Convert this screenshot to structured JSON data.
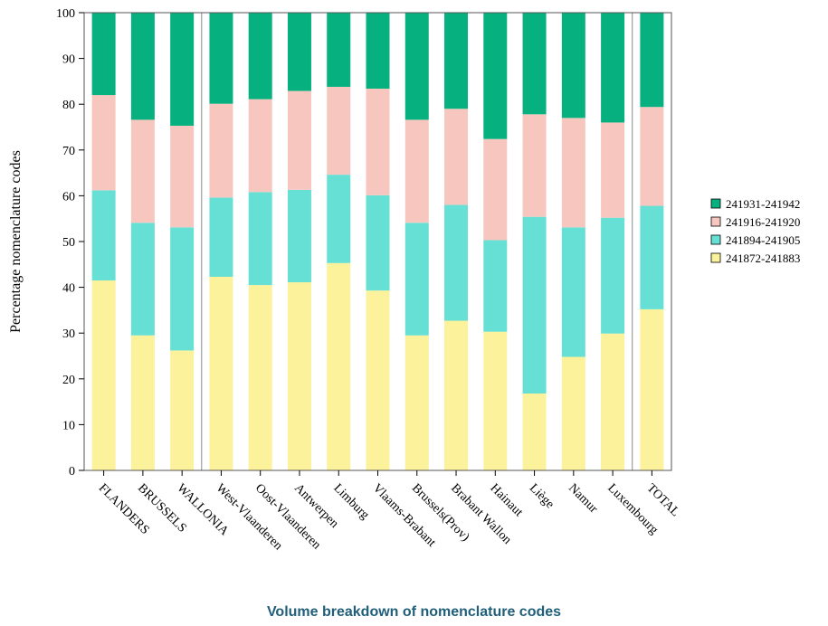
{
  "chart_data": {
    "type": "bar",
    "stacked": true,
    "ylabel": "Percentage nomenclature codes",
    "ylim": [
      0,
      100
    ],
    "yticks": [
      0,
      10,
      20,
      30,
      40,
      50,
      60,
      70,
      80,
      90,
      100
    ],
    "categories": [
      "FLANDERS",
      "BRUSSELS",
      "WALLONIA",
      "West-Vlaanderen",
      "Oost-Vlaanderen",
      "Antwerpen",
      "Limburg",
      "Vlaams-Brabant",
      "Brussels(Prov)",
      "Brabant Wallon",
      "Hainaut",
      "Liège",
      "Namur",
      "Luxembourg",
      "TOTAL"
    ],
    "group_separators_after": [
      2,
      13
    ],
    "series": [
      {
        "name": "241872-241883",
        "color": "#fbf29b",
        "values": [
          41.5,
          29.5,
          26.2,
          42.3,
          40.5,
          41.1,
          45.3,
          39.3,
          29.5,
          32.7,
          30.3,
          16.8,
          24.8,
          29.9,
          35.2
        ]
      },
      {
        "name": "241894-241905",
        "color": "#66e0d4",
        "values": [
          19.7,
          24.6,
          26.9,
          17.3,
          20.3,
          20.2,
          19.3,
          20.8,
          24.6,
          25.3,
          20.0,
          38.6,
          28.3,
          25.3,
          22.6
        ]
      },
      {
        "name": "241916-241920",
        "color": "#f7c6be",
        "values": [
          20.8,
          22.5,
          22.2,
          20.5,
          20.3,
          21.6,
          19.2,
          23.3,
          22.5,
          21.0,
          22.1,
          22.4,
          23.9,
          20.8,
          21.6
        ]
      },
      {
        "name": "241931-241942",
        "color": "#06b17f",
        "values": [
          18.0,
          23.4,
          24.7,
          19.9,
          18.9,
          17.1,
          16.2,
          16.6,
          23.4,
          21.0,
          27.6,
          22.2,
          23.0,
          24.0,
          20.6
        ]
      }
    ],
    "legend": {
      "placement": "right",
      "order": [
        "241931-241942",
        "241916-241920",
        "241894-241905",
        "241872-241883"
      ]
    },
    "grid": false
  },
  "caption": "Volume breakdown of nomenclature codes"
}
